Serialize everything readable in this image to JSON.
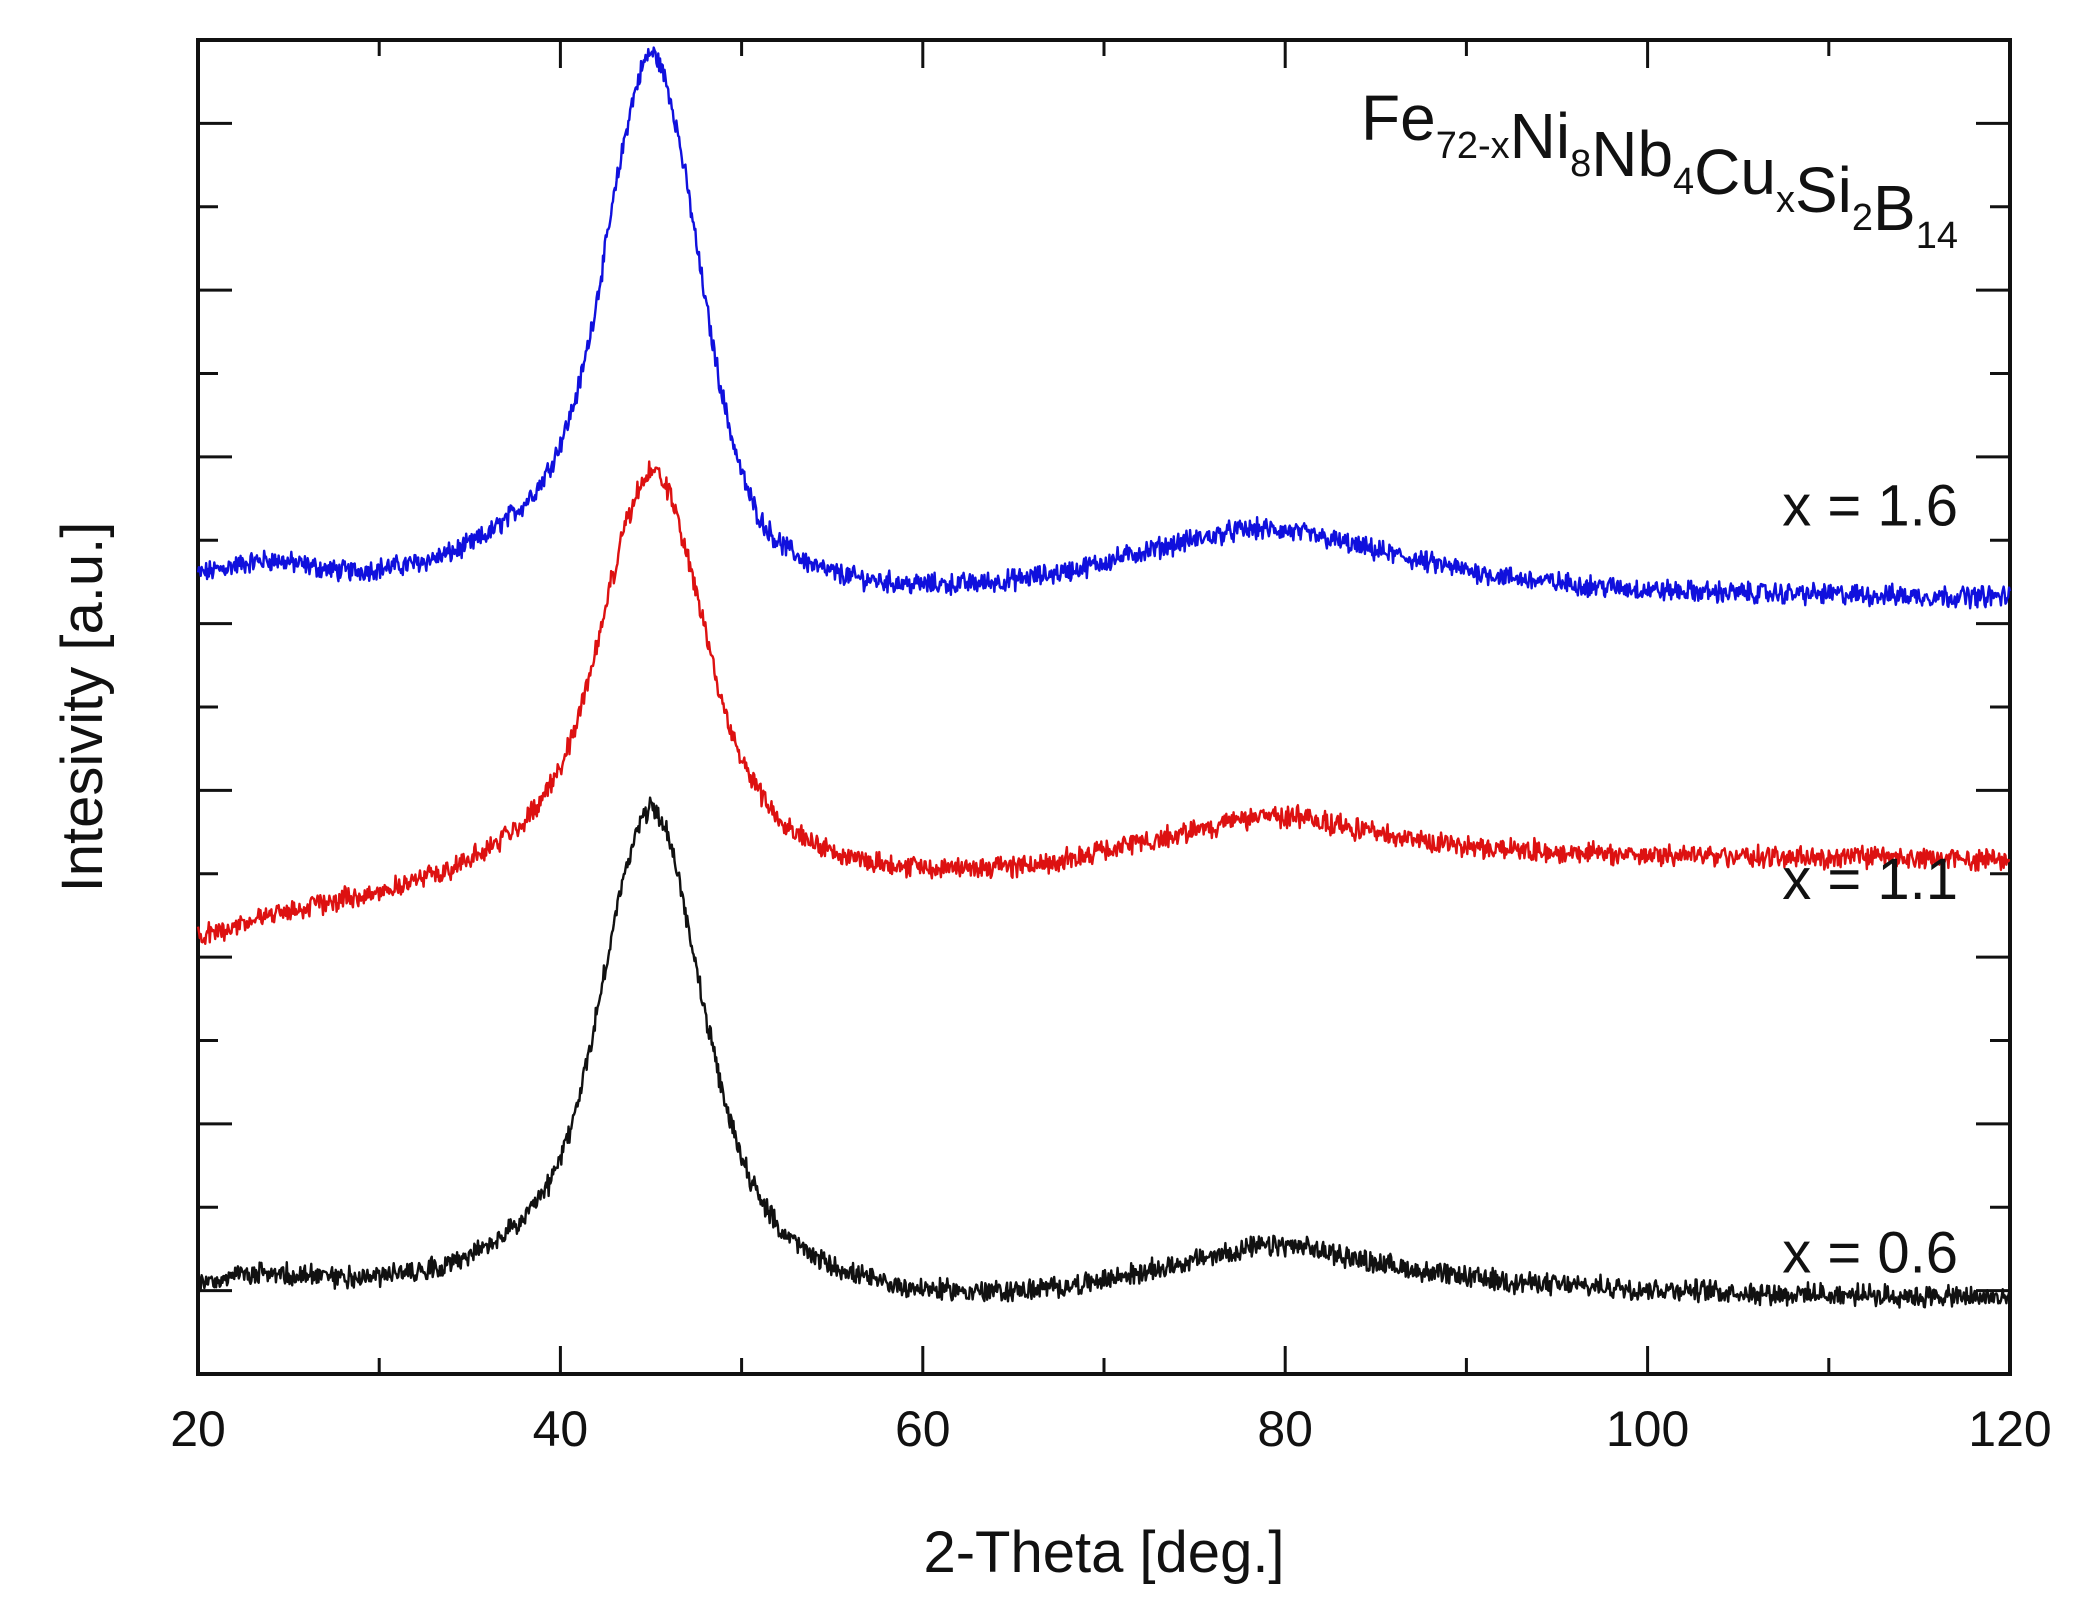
{
  "chart_data": {
    "type": "line",
    "title": "",
    "composition": {
      "parts": [
        {
          "base": "Fe",
          "sub": "72-x"
        },
        {
          "base": "Ni",
          "sub": "8"
        },
        {
          "base": "Nb",
          "sub": "4"
        },
        {
          "base": "Cu",
          "sub": "x"
        },
        {
          "base": "Si",
          "sub": "2"
        },
        {
          "base": "B",
          "sub": "14"
        }
      ]
    },
    "xlabel": "2-Theta [deg.]",
    "ylabel": "Intesivity [a.u.]",
    "xlim": [
      20,
      120
    ],
    "ylim": [
      0,
      100
    ],
    "xticks": [
      20,
      40,
      60,
      80,
      100,
      120
    ],
    "grid": false,
    "series": [
      {
        "name": "x = 1.6",
        "color": "#1010dd",
        "label_value": "x = 1.6",
        "x": [
          20,
          22,
          24,
          26,
          28,
          30,
          32,
          34,
          36,
          38,
          39,
          40,
          41,
          42,
          43,
          44,
          45,
          46,
          47,
          48,
          49,
          50,
          51,
          52,
          54,
          56,
          58,
          60,
          64,
          68,
          72,
          76,
          78,
          80,
          82,
          84,
          88,
          92,
          96,
          100,
          104,
          108,
          112,
          116,
          120
        ],
        "y": [
          60,
          60.6,
          61,
          60.6,
          60.2,
          60.4,
          60.8,
          61.6,
          63,
          65.2,
          67,
          69.8,
          74,
          80.5,
          88.5,
          95.5,
          99,
          96,
          89,
          80.5,
          73,
          67.6,
          64.2,
          62.4,
          60.6,
          59.8,
          59.4,
          59.2,
          59.4,
          60.2,
          61.6,
          62.8,
          63.3,
          63.2,
          62.7,
          62,
          60.8,
          59.8,
          59.2,
          58.8,
          58.6,
          58.5,
          58.4,
          58.3,
          58.3
        ],
        "label_pos": [
          124,
          63
        ]
      },
      {
        "name": "x = 1.1",
        "color": "#dd1111",
        "label_value": "x = 1.1",
        "x": [
          20,
          22,
          24,
          26,
          28,
          30,
          32,
          34,
          36,
          38,
          39,
          40,
          41,
          42,
          43,
          44,
          45,
          46,
          47,
          48,
          49,
          50,
          51,
          52,
          54,
          56,
          58,
          60,
          64,
          68,
          72,
          76,
          78,
          80,
          82,
          84,
          88,
          92,
          96,
          100,
          104,
          108,
          112,
          116,
          120
        ],
        "y": [
          32.8,
          33.6,
          34.4,
          35,
          35.6,
          36.2,
          37,
          38,
          39.4,
          41.4,
          43.2,
          45.6,
          49.4,
          54.6,
          60.4,
          65.2,
          67.6,
          66,
          61.4,
          55.6,
          50,
          46.2,
          43.6,
          41.8,
          39.8,
          38.8,
          38.3,
          38,
          38,
          38.6,
          39.8,
          41,
          41.6,
          41.8,
          41.4,
          40.8,
          39.9,
          39.4,
          39.1,
          38.9,
          38.8,
          38.7,
          38.7,
          38.6,
          38.6
        ],
        "label_pos": [
          124,
          35
        ]
      },
      {
        "name": "x = 0.6",
        "color": "#111111",
        "label_value": "x = 0.6",
        "x": [
          20,
          22,
          24,
          26,
          28,
          30,
          32,
          34,
          36,
          38,
          39,
          40,
          41,
          42,
          43,
          44,
          45,
          46,
          47,
          48,
          49,
          50,
          51,
          52,
          54,
          56,
          58,
          60,
          64,
          68,
          72,
          76,
          78,
          80,
          82,
          84,
          88,
          92,
          96,
          100,
          104,
          108,
          112,
          116,
          120
        ],
        "y": [
          6.8,
          7.3,
          7.5,
          7.4,
          7.3,
          7.4,
          7.8,
          8.4,
          9.6,
          11.6,
          13.4,
          16.2,
          20.6,
          27,
          34,
          39.8,
          42.4,
          40,
          34,
          27,
          20.8,
          16.4,
          13.2,
          11,
          8.8,
          7.6,
          6.8,
          6.4,
          6.2,
          6.6,
          7.6,
          8.8,
          9.4,
          9.6,
          9.2,
          8.6,
          7.6,
          7,
          6.6,
          6.4,
          6.2,
          6,
          5.9,
          5.8,
          5.7
        ],
        "label_pos": [
          124,
          7
        ]
      }
    ]
  }
}
